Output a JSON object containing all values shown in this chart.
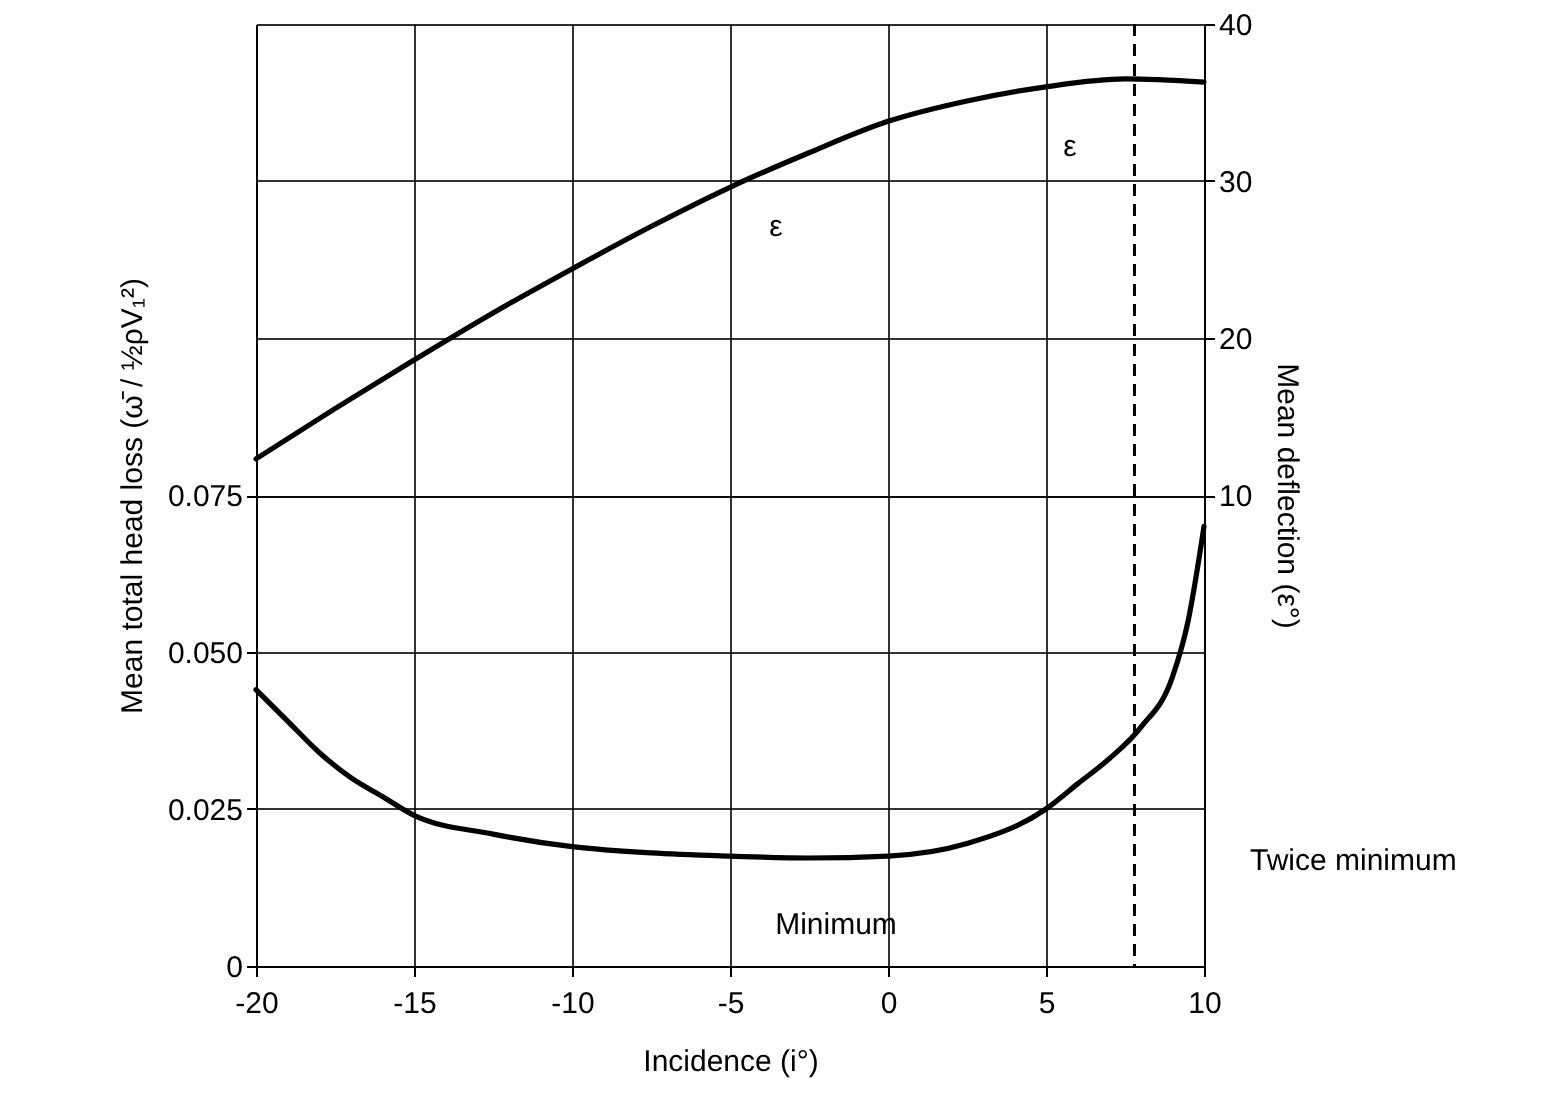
{
  "chart_data": {
    "type": "line",
    "xlabel": "Incidence (i°)",
    "ylabel": "Mean total head loss (ω̄ / ½ρV₁²)",
    "y2label": "Mean deflection (ε°)",
    "xlim": [
      -20,
      10
    ],
    "xticks": [
      -20,
      -15,
      -10,
      -5,
      0,
      5,
      10
    ],
    "ylim": [
      0,
      0.15
    ],
    "yticks": [
      0,
      {
        "value": 0.025,
        "label": "0.025"
      },
      {
        "value": 0.05,
        "label": "0.050"
      },
      {
        "value": 0.075,
        "label": "0.075"
      }
    ],
    "y2lim": [
      -20,
      40
    ],
    "y2ticks": [
      10,
      20,
      30,
      40
    ],
    "grid": true,
    "marker": "none",
    "line_style": "solid",
    "series": [
      {
        "color": "#000000",
        "x": [
          -20,
          -19,
          -18,
          -17,
          -16,
          -15,
          -12.5,
          -10,
          -7.5,
          -5,
          -2.5,
          0,
          2.5,
          5,
          6,
          7,
          8,
          9,
          9.5,
          10
        ],
        "values": [
          0.044,
          0.039,
          0.034,
          0.03,
          0.027,
          0.024,
          0.021,
          0.019,
          0.018,
          0.0175,
          0.0172,
          0.0175,
          0.0195,
          0.025,
          0.029,
          0.033,
          0.038,
          0.046,
          0.055,
          0.07
        ]
      },
      {
        "color": "#000000",
        "axis": "y2",
        "x": [
          -20,
          -17.5,
          -15,
          -12.5,
          -10,
          -7.5,
          -5,
          -2.5,
          0,
          2.5,
          5,
          7.5,
          10
        ],
        "values": [
          12.3,
          15.5,
          18.6,
          21.6,
          24.4,
          27.1,
          29.6,
          31.8,
          33.8,
          35.1,
          36,
          36.5,
          36.3
        ]
      }
    ],
    "ref_lines": [
      {
        "axis": "x",
        "value": 7.8,
        "line_style": "dashed"
      }
    ],
    "annotations": [
      "ε",
      "ε",
      "Minimum",
      "Twice minimum"
    ]
  }
}
